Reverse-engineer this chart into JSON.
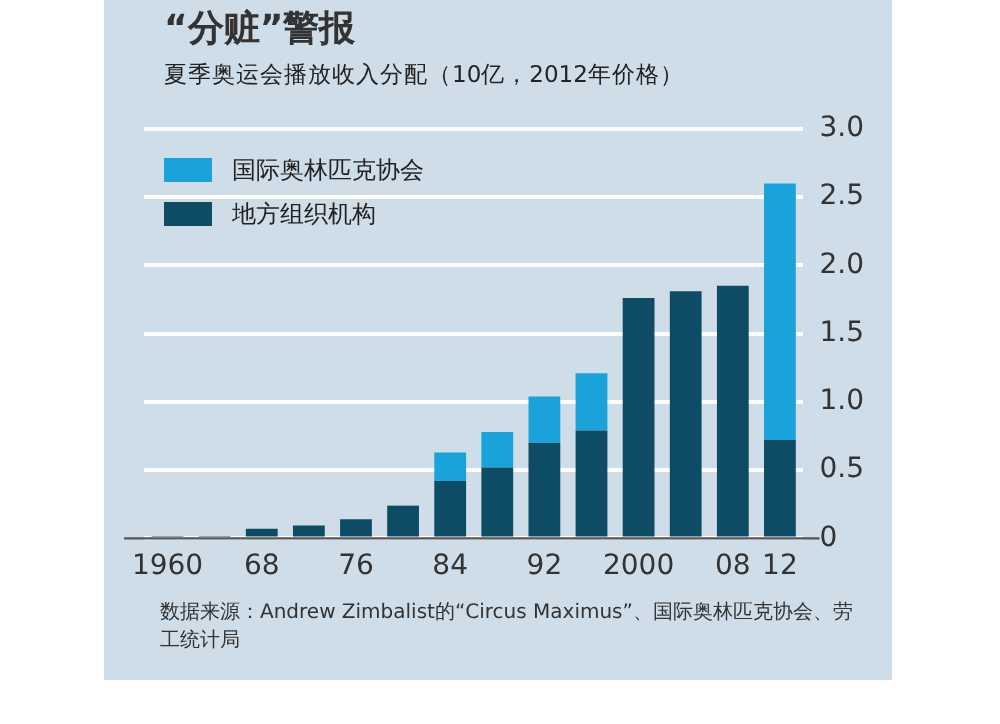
{
  "chart_data": {
    "type": "bar",
    "title": "“分赃”警报",
    "subtitle": "夏季奥运会播放收入分配（10亿，2012年价格）",
    "categories": [
      "1960",
      null,
      "68",
      null,
      "76",
      null,
      "84",
      null,
      "92",
      null,
      "2000",
      null,
      "08",
      "12"
    ],
    "stacked": true,
    "series": [
      {
        "name": "地方组织机构",
        "color": "#0e4c66",
        "values": [
          0.01,
          0.01,
          0.07,
          0.095,
          0.14,
          0.24,
          0.42,
          0.52,
          0.7,
          0.79,
          1.76,
          1.81,
          1.85,
          0.72
        ]
      },
      {
        "name": "国际奥林匹克协会",
        "color": "#1aa3db",
        "values": [
          0,
          0,
          0,
          0,
          0,
          0,
          0.21,
          0.26,
          0.34,
          0.42,
          0,
          0,
          0,
          1.88
        ]
      }
    ],
    "ylim": [
      0,
      3
    ],
    "yticks": [
      0,
      0.5,
      {
        "value": 1,
        "label": "1.0"
      },
      1.5,
      {
        "value": 2,
        "label": "2.0"
      },
      2.5,
      {
        "value": 3,
        "label": "3.0"
      }
    ],
    "grid": "y",
    "legend": "top left",
    "annotations": [
      "数据来源：Andrew Zimbalist的“Circus Maximus”、国际奥林匹克协会、劳工统计局"
    ]
  }
}
